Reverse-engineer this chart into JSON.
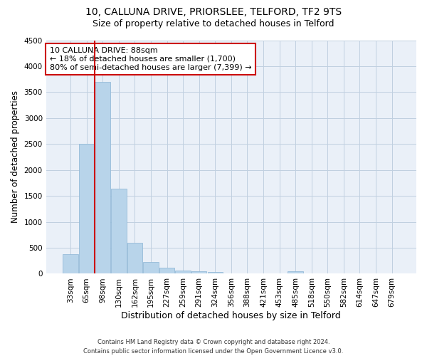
{
  "title1": "10, CALLUNA DRIVE, PRIORSLEE, TELFORD, TF2 9TS",
  "title2": "Size of property relative to detached houses in Telford",
  "xlabel": "Distribution of detached houses by size in Telford",
  "ylabel": "Number of detached properties",
  "categories": [
    "33sqm",
    "65sqm",
    "98sqm",
    "130sqm",
    "162sqm",
    "195sqm",
    "227sqm",
    "259sqm",
    "291sqm",
    "324sqm",
    "356sqm",
    "388sqm",
    "421sqm",
    "453sqm",
    "485sqm",
    "518sqm",
    "550sqm",
    "582sqm",
    "614sqm",
    "647sqm",
    "679sqm"
  ],
  "values": [
    380,
    2500,
    3700,
    1640,
    590,
    220,
    110,
    60,
    45,
    35,
    0,
    0,
    0,
    0,
    45,
    0,
    0,
    0,
    0,
    0,
    0
  ],
  "bar_color": "#b8d4ea",
  "bar_edge_color": "#8ab4d4",
  "highlight_color": "#cc0000",
  "ylim": [
    0,
    4500
  ],
  "yticks": [
    0,
    500,
    1000,
    1500,
    2000,
    2500,
    3000,
    3500,
    4000,
    4500
  ],
  "annotation_title": "10 CALLUNA DRIVE: 88sqm",
  "annotation_line1": "← 18% of detached houses are smaller (1,700)",
  "annotation_line2": "80% of semi-detached houses are larger (7,399) →",
  "annotation_box_color": "#ffffff",
  "annotation_box_edge": "#cc0000",
  "footer1": "Contains HM Land Registry data © Crown copyright and database right 2024.",
  "footer2": "Contains public sector information licensed under the Open Government Licence v3.0.",
  "bg_color": "#ffffff",
  "plot_bg_color": "#eaf0f8",
  "grid_color": "#c0d0e0",
  "title1_fontsize": 10,
  "title2_fontsize": 9,
  "xlabel_fontsize": 9,
  "ylabel_fontsize": 8.5,
  "tick_fontsize": 7.5,
  "annotation_fontsize": 8,
  "footer_fontsize": 6,
  "property_line_x": 1.5
}
